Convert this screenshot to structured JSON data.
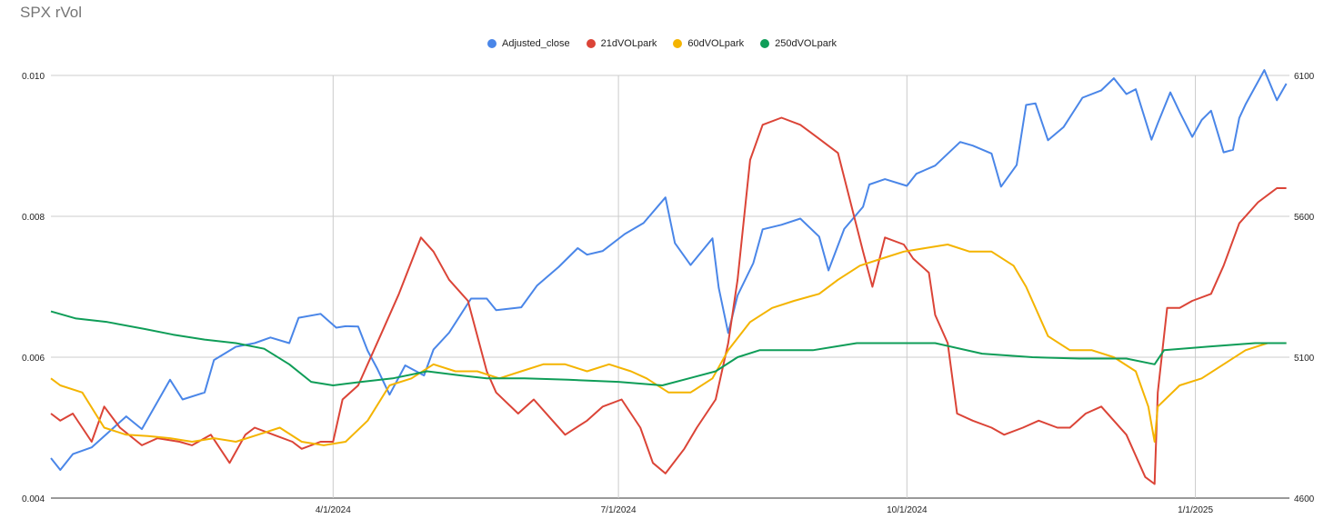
{
  "chart_data": {
    "type": "line",
    "title": "SPX rVol",
    "xlabel": "",
    "ylabel_left": "",
    "ylabel_right": "",
    "x_ticks": [
      "4/1/2024",
      "7/1/2024",
      "10/1/2024",
      "1/1/2025"
    ],
    "x_range": [
      "2024-01-02",
      "2025-01-31"
    ],
    "y_left": {
      "ticks": [
        "0.004",
        "0.006",
        "0.008",
        "0.010"
      ],
      "range": [
        0.004,
        0.01
      ]
    },
    "y_right": {
      "ticks": [
        "4600",
        "5100",
        "5600",
        "6100"
      ],
      "range": [
        4600,
        6100
      ]
    },
    "grid": true,
    "legend_position": "top-center",
    "series": [
      {
        "name": "Adjusted_close",
        "color": "#4a86e8",
        "axis": "right",
        "points": [
          [
            "2024-01-02",
            4742
          ],
          [
            "2024-01-05",
            4700
          ],
          [
            "2024-01-09",
            4756
          ],
          [
            "2024-01-15",
            4780
          ],
          [
            "2024-01-22",
            4850
          ],
          [
            "2024-01-26",
            4890
          ],
          [
            "2024-01-31",
            4845
          ],
          [
            "2024-02-05",
            4942
          ],
          [
            "2024-02-09",
            5020
          ],
          [
            "2024-02-13",
            4950
          ],
          [
            "2024-02-20",
            4975
          ],
          [
            "2024-02-23",
            5090
          ],
          [
            "2024-03-01",
            5137
          ],
          [
            "2024-03-07",
            5150
          ],
          [
            "2024-03-12",
            5170
          ],
          [
            "2024-03-18",
            5150
          ],
          [
            "2024-03-21",
            5240
          ],
          [
            "2024-03-28",
            5254
          ],
          [
            "2024-04-02",
            5205
          ],
          [
            "2024-04-05",
            5210
          ],
          [
            "2024-04-09",
            5209
          ],
          [
            "2024-04-12",
            5123
          ],
          [
            "2024-04-15",
            5061
          ],
          [
            "2024-04-19",
            4967
          ],
          [
            "2024-04-24",
            5071
          ],
          [
            "2024-04-30",
            5035
          ],
          [
            "2024-05-03",
            5127
          ],
          [
            "2024-05-08",
            5187
          ],
          [
            "2024-05-15",
            5308
          ],
          [
            "2024-05-20",
            5308
          ],
          [
            "2024-05-23",
            5267
          ],
          [
            "2024-05-31",
            5277
          ],
          [
            "2024-06-05",
            5354
          ],
          [
            "2024-06-12",
            5421
          ],
          [
            "2024-06-18",
            5487
          ],
          [
            "2024-06-21",
            5464
          ],
          [
            "2024-06-26",
            5477
          ],
          [
            "2024-07-03",
            5537
          ],
          [
            "2024-07-09",
            5576
          ],
          [
            "2024-07-16",
            5667
          ],
          [
            "2024-07-19",
            5505
          ],
          [
            "2024-07-24",
            5427
          ],
          [
            "2024-07-31",
            5522
          ],
          [
            "2024-08-02",
            5346
          ],
          [
            "2024-08-05",
            5186
          ],
          [
            "2024-08-08",
            5319
          ],
          [
            "2024-08-13",
            5434
          ],
          [
            "2024-08-16",
            5554
          ],
          [
            "2024-08-22",
            5570
          ],
          [
            "2024-08-28",
            5592
          ],
          [
            "2024-09-03",
            5528
          ],
          [
            "2024-09-06",
            5408
          ],
          [
            "2024-09-11",
            5555
          ],
          [
            "2024-09-17",
            5634
          ],
          [
            "2024-09-19",
            5713
          ],
          [
            "2024-09-24",
            5732
          ],
          [
            "2024-10-01",
            5708
          ],
          [
            "2024-10-04",
            5751
          ],
          [
            "2024-10-10",
            5780
          ],
          [
            "2024-10-18",
            5864
          ],
          [
            "2024-10-22",
            5851
          ],
          [
            "2024-10-28",
            5823
          ],
          [
            "2024-10-31",
            5705
          ],
          [
            "2024-11-05",
            5782
          ],
          [
            "2024-11-08",
            5995
          ],
          [
            "2024-11-11",
            6001
          ],
          [
            "2024-11-15",
            5870
          ],
          [
            "2024-11-20",
            5917
          ],
          [
            "2024-11-26",
            6021
          ],
          [
            "2024-12-02",
            6047
          ],
          [
            "2024-12-06",
            6090
          ],
          [
            "2024-12-10",
            6034
          ],
          [
            "2024-12-13",
            6051
          ],
          [
            "2024-12-18",
            5872
          ],
          [
            "2024-12-20",
            5930
          ],
          [
            "2024-12-24",
            6040
          ],
          [
            "2024-12-27",
            5970
          ],
          [
            "2024-12-31",
            5882
          ],
          [
            "2025-01-03",
            5942
          ],
          [
            "2025-01-06",
            5975
          ],
          [
            "2025-01-10",
            5827
          ],
          [
            "2025-01-13",
            5836
          ],
          [
            "2025-01-15",
            5949
          ],
          [
            "2025-01-17",
            5997
          ],
          [
            "2025-01-23",
            6119
          ],
          [
            "2025-01-27",
            6012
          ],
          [
            "2025-01-30",
            6071
          ]
        ]
      },
      {
        "name": "21dVOLpark",
        "color": "#db4437",
        "axis": "left",
        "points": [
          [
            "2024-01-02",
            0.0052
          ],
          [
            "2024-01-05",
            0.0051
          ],
          [
            "2024-01-09",
            0.0052
          ],
          [
            "2024-01-15",
            0.0048
          ],
          [
            "2024-01-19",
            0.0053
          ],
          [
            "2024-01-24",
            0.005
          ],
          [
            "2024-01-31",
            0.00475
          ],
          [
            "2024-02-05",
            0.00485
          ],
          [
            "2024-02-12",
            0.0048
          ],
          [
            "2024-02-16",
            0.00475
          ],
          [
            "2024-02-22",
            0.0049
          ],
          [
            "2024-02-28",
            0.0045
          ],
          [
            "2024-03-04",
            0.0049
          ],
          [
            "2024-03-07",
            0.005
          ],
          [
            "2024-03-13",
            0.0049
          ],
          [
            "2024-03-19",
            0.0048
          ],
          [
            "2024-03-22",
            0.0047
          ],
          [
            "2024-03-28",
            0.0048
          ],
          [
            "2024-04-01",
            0.0048
          ],
          [
            "2024-04-04",
            0.0054
          ],
          [
            "2024-04-09",
            0.0056
          ],
          [
            "2024-04-16",
            0.0063
          ],
          [
            "2024-04-22",
            0.0069
          ],
          [
            "2024-04-29",
            0.0077
          ],
          [
            "2024-05-03",
            0.0075
          ],
          [
            "2024-05-08",
            0.0071
          ],
          [
            "2024-05-14",
            0.0068
          ],
          [
            "2024-05-20",
            0.0058
          ],
          [
            "2024-05-23",
            0.0055
          ],
          [
            "2024-05-30",
            0.0052
          ],
          [
            "2024-06-04",
            0.0054
          ],
          [
            "2024-06-10",
            0.0051
          ],
          [
            "2024-06-14",
            0.0049
          ],
          [
            "2024-06-21",
            0.0051
          ],
          [
            "2024-06-26",
            0.0053
          ],
          [
            "2024-07-02",
            0.0054
          ],
          [
            "2024-07-08",
            0.005
          ],
          [
            "2024-07-12",
            0.0045
          ],
          [
            "2024-07-16",
            0.00435
          ],
          [
            "2024-07-22",
            0.0047
          ],
          [
            "2024-07-26",
            0.005
          ],
          [
            "2024-08-01",
            0.0054
          ],
          [
            "2024-08-05",
            0.0062
          ],
          [
            "2024-08-08",
            0.0071
          ],
          [
            "2024-08-12",
            0.0088
          ],
          [
            "2024-08-16",
            0.0093
          ],
          [
            "2024-08-22",
            0.0094
          ],
          [
            "2024-08-28",
            0.0093
          ],
          [
            "2024-09-03",
            0.0091
          ],
          [
            "2024-09-09",
            0.0089
          ],
          [
            "2024-09-13",
            0.0082
          ],
          [
            "2024-09-17",
            0.0075
          ],
          [
            "2024-09-20",
            0.007
          ],
          [
            "2024-09-24",
            0.0077
          ],
          [
            "2024-09-30",
            0.0076
          ],
          [
            "2024-10-03",
            0.0074
          ],
          [
            "2024-10-08",
            0.0072
          ],
          [
            "2024-10-10",
            0.0066
          ],
          [
            "2024-10-14",
            0.0062
          ],
          [
            "2024-10-17",
            0.0052
          ],
          [
            "2024-10-22",
            0.0051
          ],
          [
            "2024-10-28",
            0.005
          ],
          [
            "2024-11-01",
            0.0049
          ],
          [
            "2024-11-07",
            0.005
          ],
          [
            "2024-11-12",
            0.0051
          ],
          [
            "2024-11-18",
            0.005
          ],
          [
            "2024-11-22",
            0.005
          ],
          [
            "2024-11-27",
            0.0052
          ],
          [
            "2024-12-02",
            0.0053
          ],
          [
            "2024-12-06",
            0.0051
          ],
          [
            "2024-12-10",
            0.0049
          ],
          [
            "2024-12-16",
            0.0043
          ],
          [
            "2024-12-19",
            0.0042
          ],
          [
            "2024-12-20",
            0.0055
          ],
          [
            "2024-12-23",
            0.0067
          ],
          [
            "2024-12-27",
            0.0067
          ],
          [
            "2024-12-31",
            0.0068
          ],
          [
            "2025-01-06",
            0.0069
          ],
          [
            "2025-01-10",
            0.0073
          ],
          [
            "2025-01-15",
            0.0079
          ],
          [
            "2025-01-21",
            0.0082
          ],
          [
            "2025-01-27",
            0.0084
          ],
          [
            "2025-01-30",
            0.0084
          ]
        ]
      },
      {
        "name": "60dVOLpark",
        "color": "#f4b400",
        "axis": "left",
        "points": [
          [
            "2024-01-02",
            0.0057
          ],
          [
            "2024-01-05",
            0.0056
          ],
          [
            "2024-01-12",
            0.0055
          ],
          [
            "2024-01-19",
            0.005
          ],
          [
            "2024-01-26",
            0.0049
          ],
          [
            "2024-02-02",
            0.00488
          ],
          [
            "2024-02-09",
            0.00485
          ],
          [
            "2024-02-16",
            0.0048
          ],
          [
            "2024-02-23",
            0.00485
          ],
          [
            "2024-03-01",
            0.0048
          ],
          [
            "2024-03-08",
            0.0049
          ],
          [
            "2024-03-15",
            0.005
          ],
          [
            "2024-03-22",
            0.0048
          ],
          [
            "2024-03-29",
            0.00475
          ],
          [
            "2024-04-05",
            0.0048
          ],
          [
            "2024-04-12",
            0.0051
          ],
          [
            "2024-04-19",
            0.0056
          ],
          [
            "2024-04-26",
            0.0057
          ],
          [
            "2024-05-03",
            0.0059
          ],
          [
            "2024-05-10",
            0.0058
          ],
          [
            "2024-05-17",
            0.0058
          ],
          [
            "2024-05-24",
            0.0057
          ],
          [
            "2024-05-31",
            0.0058
          ],
          [
            "2024-06-07",
            0.0059
          ],
          [
            "2024-06-14",
            0.0059
          ],
          [
            "2024-06-21",
            0.0058
          ],
          [
            "2024-06-28",
            0.0059
          ],
          [
            "2024-07-05",
            0.0058
          ],
          [
            "2024-07-10",
            0.0057
          ],
          [
            "2024-07-17",
            0.0055
          ],
          [
            "2024-07-24",
            0.0055
          ],
          [
            "2024-07-31",
            0.0057
          ],
          [
            "2024-08-05",
            0.0061
          ],
          [
            "2024-08-12",
            0.0065
          ],
          [
            "2024-08-19",
            0.0067
          ],
          [
            "2024-08-26",
            0.0068
          ],
          [
            "2024-09-03",
            0.0069
          ],
          [
            "2024-09-09",
            0.0071
          ],
          [
            "2024-09-16",
            0.0073
          ],
          [
            "2024-09-23",
            0.0074
          ],
          [
            "2024-09-30",
            0.0075
          ],
          [
            "2024-10-07",
            0.00755
          ],
          [
            "2024-10-14",
            0.0076
          ],
          [
            "2024-10-21",
            0.0075
          ],
          [
            "2024-10-28",
            0.0075
          ],
          [
            "2024-11-04",
            0.0073
          ],
          [
            "2024-11-08",
            0.007
          ],
          [
            "2024-11-15",
            0.0063
          ],
          [
            "2024-11-22",
            0.0061
          ],
          [
            "2024-11-29",
            0.0061
          ],
          [
            "2024-12-06",
            0.006
          ],
          [
            "2024-12-13",
            0.0058
          ],
          [
            "2024-12-17",
            0.0053
          ],
          [
            "2024-12-19",
            0.0048
          ],
          [
            "2024-12-20",
            0.0053
          ],
          [
            "2024-12-27",
            0.0056
          ],
          [
            "2025-01-03",
            0.0057
          ],
          [
            "2025-01-10",
            0.0059
          ],
          [
            "2025-01-17",
            0.0061
          ],
          [
            "2025-01-24",
            0.0062
          ],
          [
            "2025-01-30",
            0.0062
          ]
        ]
      },
      {
        "name": "250dVOLpark",
        "color": "#0f9d58",
        "axis": "left",
        "points": [
          [
            "2024-01-02",
            0.00665
          ],
          [
            "2024-01-10",
            0.00655
          ],
          [
            "2024-01-20",
            0.0065
          ],
          [
            "2024-02-01",
            0.0064
          ],
          [
            "2024-02-10",
            0.00632
          ],
          [
            "2024-02-20",
            0.00625
          ],
          [
            "2024-03-01",
            0.0062
          ],
          [
            "2024-03-10",
            0.00612
          ],
          [
            "2024-03-18",
            0.0059
          ],
          [
            "2024-03-25",
            0.00565
          ],
          [
            "2024-04-01",
            0.0056
          ],
          [
            "2024-04-10",
            0.00565
          ],
          [
            "2024-04-20",
            0.0057
          ],
          [
            "2024-05-01",
            0.0058
          ],
          [
            "2024-05-10",
            0.00575
          ],
          [
            "2024-05-20",
            0.0057
          ],
          [
            "2024-06-01",
            0.0057
          ],
          [
            "2024-06-15",
            0.00568
          ],
          [
            "2024-07-01",
            0.00565
          ],
          [
            "2024-07-15",
            0.0056
          ],
          [
            "2024-08-01",
            0.0058
          ],
          [
            "2024-08-08",
            0.006
          ],
          [
            "2024-08-15",
            0.0061
          ],
          [
            "2024-09-01",
            0.0061
          ],
          [
            "2024-09-15",
            0.0062
          ],
          [
            "2024-09-25",
            0.0062
          ],
          [
            "2024-10-10",
            0.0062
          ],
          [
            "2024-10-25",
            0.00605
          ],
          [
            "2024-11-10",
            0.006
          ],
          [
            "2024-11-25",
            0.00598
          ],
          [
            "2024-12-10",
            0.00598
          ],
          [
            "2024-12-19",
            0.0059
          ],
          [
            "2024-12-22",
            0.0061
          ],
          [
            "2025-01-05",
            0.00615
          ],
          [
            "2025-01-20",
            0.0062
          ],
          [
            "2025-01-30",
            0.0062
          ]
        ]
      }
    ]
  }
}
